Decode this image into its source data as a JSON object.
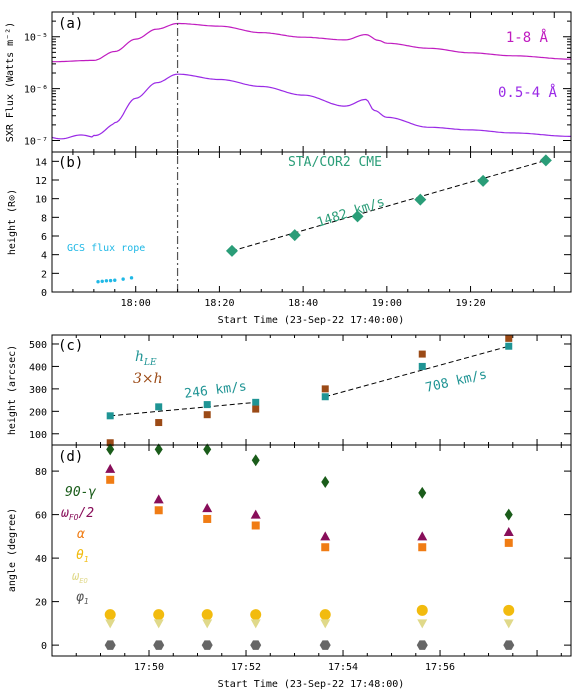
{
  "chart_data": [
    {
      "type": "line",
      "panel_label": "(a)",
      "ylabel": "SXR Flux (Watts m⁻²)",
      "yscale": "log",
      "ylim": [
        6e-08,
        3e-05
      ],
      "ytick_labels": [
        "10⁻⁵",
        "10⁻⁶",
        "10⁻⁷"
      ],
      "xlim_minutes_after_1740": [
        0,
        124
      ],
      "vertical_line_x": "18:10",
      "series": [
        {
          "name": "1-8 Å",
          "color": "#c01cc0",
          "x": [
            "17:40",
            "17:50",
            "17:55",
            "18:00",
            "18:05",
            "18:10",
            "18:20",
            "18:30",
            "18:40",
            "18:50",
            "18:55",
            "18:58",
            "19:00",
            "19:10",
            "19:20",
            "19:30",
            "19:44"
          ],
          "y": [
            3.3e-06,
            3.5e-06,
            5.2e-06,
            9e-06,
            1.4e-05,
            1.8e-05,
            1.6e-05,
            1.2e-05,
            9.8e-06,
            8.7e-06,
            1.1e-05,
            8.5e-06,
            7.5e-06,
            6e-06,
            4.9e-06,
            4.3e-06,
            3.7e-06
          ]
        },
        {
          "name": "0.5-4 Å",
          "color": "#9a2ae6",
          "x": [
            "17:40",
            "17:50",
            "17:55",
            "18:00",
            "18:05",
            "18:10",
            "18:20",
            "18:30",
            "18:40",
            "18:50",
            "18:55",
            "18:57",
            "19:00",
            "19:10",
            "19:20",
            "19:30",
            "19:44"
          ],
          "y": [
            1.15e-07,
            1.2e-07,
            2.2e-07,
            6.5e-07,
            1.3e-06,
            1.9e-06,
            1.5e-06,
            1.1e-06,
            7.5e-07,
            4.6e-07,
            6.2e-07,
            3.8e-07,
            2.8e-07,
            1.8e-07,
            1.6e-07,
            1.4e-07,
            1.2e-07
          ]
        }
      ]
    },
    {
      "type": "scatter",
      "panel_label": "(b)",
      "title": "STA/COR2 CME",
      "ylabel": "height (R⊙)",
      "xlabel": "Start Time (23-Sep-22 17:40:00)",
      "xlim_minutes_after_1740": [
        0,
        124
      ],
      "ylim": [
        0,
        15
      ],
      "yticks": [
        0,
        2,
        4,
        6,
        8,
        10,
        12,
        14
      ],
      "xtick_labels": [
        "18:00",
        "18:20",
        "18:40",
        "19:00",
        "19:20"
      ],
      "annotation": "1482 km/s",
      "series": [
        {
          "name": "STA/COR2 CME",
          "color": "#2a9d78",
          "x": [
            "18:23",
            "18:38",
            "18:53",
            "19:08",
            "19:23",
            "19:38"
          ],
          "y": [
            4.4,
            6.1,
            8.1,
            9.9,
            11.9,
            14.1
          ]
        },
        {
          "name": "GCS flux rope",
          "color": "#1fb8e6",
          "x": [
            "17:51",
            "17:52",
            "17:53",
            "17:54",
            "17:55",
            "17:57",
            "17:59"
          ],
          "y": [
            1.1,
            1.15,
            1.2,
            1.22,
            1.26,
            1.38,
            1.52
          ]
        }
      ]
    },
    {
      "type": "scatter",
      "panel_label": "(c)",
      "ylabel": "height (arcsec)",
      "xlim_minutes_after_1748": [
        0,
        10.7
      ],
      "ylim": [
        50,
        540
      ],
      "yticks": [
        100,
        200,
        300,
        400,
        500
      ],
      "annotations": [
        "246 km/s",
        "708 km/s"
      ],
      "series": [
        {
          "name": "h_LE",
          "color": "#1f9494",
          "x": [
            "17:49:12",
            "17:50:12",
            "17:51:12",
            "17:52:12",
            "17:53:38",
            "17:55:38",
            "17:57:25"
          ],
          "y": [
            180,
            220,
            230,
            240,
            265,
            400,
            490
          ]
        },
        {
          "name": "3×h",
          "color": "#9b4a16",
          "x": [
            "17:49:12",
            "17:50:12",
            "17:51:12",
            "17:52:12",
            "17:53:38",
            "17:55:38",
            "17:57:25"
          ],
          "y": [
            60,
            150,
            185,
            210,
            300,
            455,
            525
          ]
        }
      ]
    },
    {
      "type": "scatter",
      "panel_label": "(d)",
      "ylabel": "angle (degree)",
      "xlabel": "Start Time (23-Sep-22 17:48:00)",
      "xlim_minutes_after_1748": [
        0,
        10.7
      ],
      "ylim": [
        -5,
        92
      ],
      "yticks": [
        0,
        20,
        40,
        60,
        80
      ],
      "xtick_labels": [
        "17:50",
        "17:52",
        "17:54",
        "17:56"
      ],
      "x": [
        "17:49:12",
        "17:50:12",
        "17:51:12",
        "17:52:12",
        "17:53:38",
        "17:55:38",
        "17:57:25"
      ],
      "series": [
        {
          "name": "90-γ",
          "label_main": "90-",
          "label_greek": "γ",
          "color": "#1a5c1a",
          "marker": "diamond",
          "y": [
            90,
            90,
            90,
            85,
            75,
            70,
            60
          ]
        },
        {
          "name": "ωFO/2",
          "label_main": "ω",
          "label_sub": "FO",
          "label_tail": "/2",
          "color": "#880e5a",
          "marker": "triangle-up",
          "y": [
            81,
            67,
            63,
            60,
            50,
            50,
            52
          ]
        },
        {
          "name": "α",
          "label_main": "α",
          "color": "#f07c14",
          "marker": "square",
          "y": [
            76,
            62,
            58,
            55,
            45,
            45,
            47
          ]
        },
        {
          "name": "θ1",
          "label_main": "θ",
          "label_sub": "1",
          "color": "#f2bb0e",
          "marker": "circle",
          "y": [
            14,
            14,
            14,
            14,
            14,
            16,
            16
          ]
        },
        {
          "name": "ωEO",
          "label_main": "ω",
          "label_sub": "EO",
          "color": "#e0d98a",
          "marker": "triangle-down",
          "y": [
            10,
            10,
            10,
            10,
            10,
            10,
            10
          ]
        },
        {
          "name": "φ1",
          "label_main": "φ",
          "label_sub": "1",
          "color": "#666666",
          "marker": "hexagon",
          "y": [
            0,
            0,
            0,
            0,
            0,
            0,
            0
          ]
        }
      ]
    }
  ],
  "legend_c": {
    "hle_main": "h",
    "hle_sub": "LE",
    "three_h": "3×h"
  },
  "legend_b_gcs": "GCS flux rope"
}
